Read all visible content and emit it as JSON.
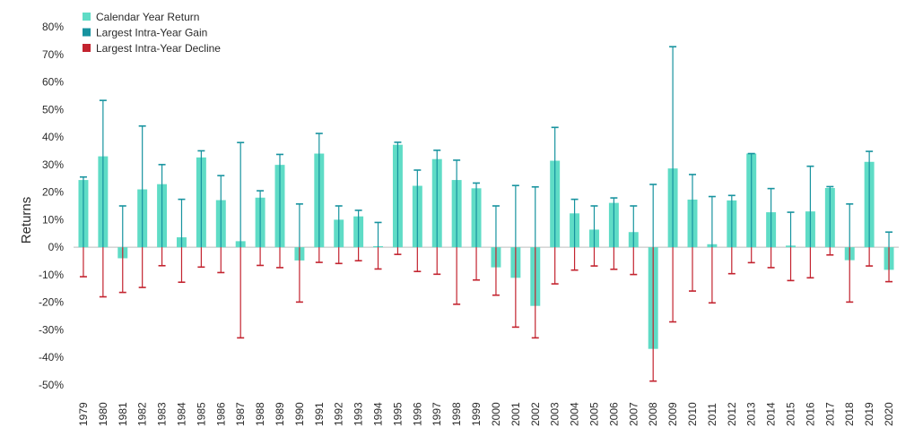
{
  "chart_data": {
    "type": "bar",
    "title": "",
    "xlabel": "",
    "ylabel": "Returns",
    "ylim": [
      -50,
      80
    ],
    "yticks": [
      "80%",
      "70%",
      "60%",
      "50%",
      "40%",
      "30%",
      "20%",
      "10%",
      "0%",
      "-10%",
      "-20%",
      "-30%",
      "-40%",
      "-50%"
    ],
    "ytick_values": [
      80,
      70,
      60,
      50,
      40,
      30,
      20,
      10,
      0,
      -10,
      -20,
      -30,
      -40,
      -50
    ],
    "legend_position": "top-left",
    "grid": false,
    "categories": [
      "1979",
      "1980",
      "1981",
      "1982",
      "1983",
      "1984",
      "1985",
      "1986",
      "1987",
      "1988",
      "1989",
      "1990",
      "1991",
      "1992",
      "1993",
      "1994",
      "1995",
      "1996",
      "1997",
      "1998",
      "1999",
      "2000",
      "2001",
      "2002",
      "2003",
      "2004",
      "2005",
      "2006",
      "2007",
      "2008",
      "2009",
      "2010",
      "2011",
      "2012",
      "2013",
      "2014",
      "2015",
      "2016",
      "2017",
      "2018",
      "2019",
      "2020"
    ],
    "series": [
      {
        "name": "Calendar Year Return",
        "color": "#5fdcc6",
        "values": [
          24.4,
          33.0,
          -4.0,
          21.0,
          22.9,
          3.6,
          32.6,
          17.1,
          2.2,
          18.0,
          29.9,
          -4.8,
          34.0,
          10.0,
          11.2,
          0.4,
          37.2,
          22.3,
          32.0,
          24.4,
          21.4,
          -7.3,
          -11.1,
          -21.3,
          31.4,
          12.3,
          6.4,
          16.1,
          5.5,
          -36.9,
          28.6,
          17.3,
          1.1,
          17.0,
          34.0,
          12.7,
          0.6,
          13.0,
          21.5,
          -4.7,
          31.0,
          -8.2
        ]
      },
      {
        "name": "Largest Intra-Year Gain",
        "color": "#17939f",
        "values": [
          25.5,
          53.3,
          15.0,
          44.0,
          30.0,
          17.4,
          35.0,
          26.0,
          38.0,
          20.5,
          33.7,
          15.7,
          41.3,
          15.0,
          13.4,
          9.0,
          38.1,
          28.0,
          35.2,
          31.6,
          23.3,
          15.0,
          22.4,
          21.9,
          43.5,
          17.4,
          15.0,
          17.9,
          15.0,
          22.8,
          72.8,
          26.4,
          18.4,
          18.8,
          34.0,
          21.3,
          12.7,
          29.4,
          22.0,
          15.7,
          34.8,
          5.5
        ]
      },
      {
        "name": "Largest Intra-Year Decline",
        "color": "#c3232f",
        "values": [
          -10.7,
          -18.0,
          -16.4,
          -14.6,
          -6.7,
          -12.7,
          -7.2,
          -9.2,
          -32.9,
          -6.6,
          -7.4,
          -19.9,
          -5.5,
          -5.9,
          -4.9,
          -7.9,
          -2.6,
          -8.8,
          -9.8,
          -20.7,
          -11.9,
          -17.4,
          -29.0,
          -32.9,
          -13.3,
          -8.3,
          -6.8,
          -8.0,
          -9.9,
          -48.6,
          -27.1,
          -15.9,
          -20.2,
          -9.6,
          -5.6,
          -7.4,
          -12.1,
          -11.1,
          -2.8,
          -19.9,
          -6.8,
          -12.5
        ]
      }
    ]
  }
}
